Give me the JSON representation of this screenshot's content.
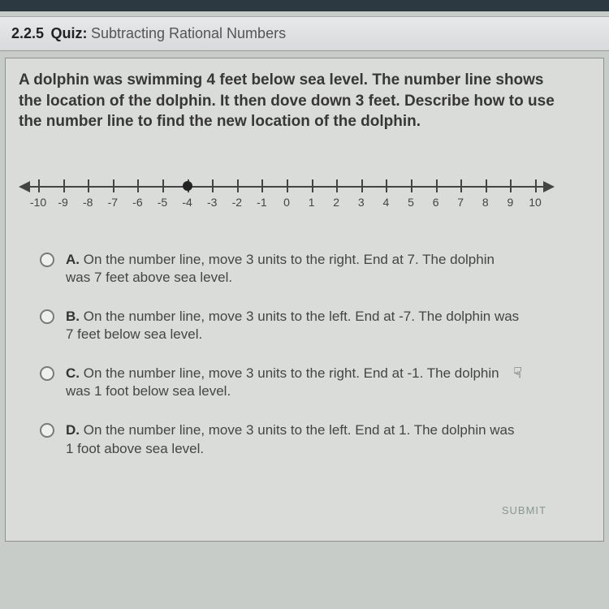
{
  "header": {
    "number": "2.2.5",
    "label": "Quiz:",
    "title": "Subtracting Rational Numbers"
  },
  "question": {
    "text": "A dolphin was swimming 4 feet below sea level. The number line shows the location of the dolphin. It then dove down 3 feet. Describe how to use the number line to find the new location of the dolphin."
  },
  "numberline": {
    "min": -10,
    "max": 10,
    "tick_step": 1,
    "point_value": -4,
    "labels": [
      "-10",
      "-9",
      "-8",
      "-7",
      "-6",
      "-5",
      "-4",
      "-3",
      "-2",
      "-1",
      "0",
      "1",
      "2",
      "3",
      "4",
      "5",
      "6",
      "7",
      "8",
      "9",
      "10"
    ],
    "line_color": "#444444",
    "point_color": "#222222",
    "label_fontsize": 14
  },
  "choices": [
    {
      "letter": "A.",
      "text": "On the number line, move 3 units to the right. End at 7. The dolphin was 7 feet above sea level."
    },
    {
      "letter": "B.",
      "text": "On the number line, move 3 units to the left. End at -7. The dolphin was 7 feet below sea level."
    },
    {
      "letter": "C.",
      "text": "On the number line, move 3 units to the right. End at -1. The dolphin was 1 foot below sea level."
    },
    {
      "letter": "D.",
      "text": "On the number line, move 3 units to the left. End at 1. The dolphin was 1 foot above sea level."
    }
  ],
  "submit_label": "SUBMIT",
  "colors": {
    "page_bg": "#c8ccc9",
    "header_bg_top": "#e8e9ea",
    "header_bg_bottom": "#d8d9da",
    "box_bg": "#dadcd9",
    "box_border": "#8f8f8f",
    "text": "#3a3a3a"
  }
}
